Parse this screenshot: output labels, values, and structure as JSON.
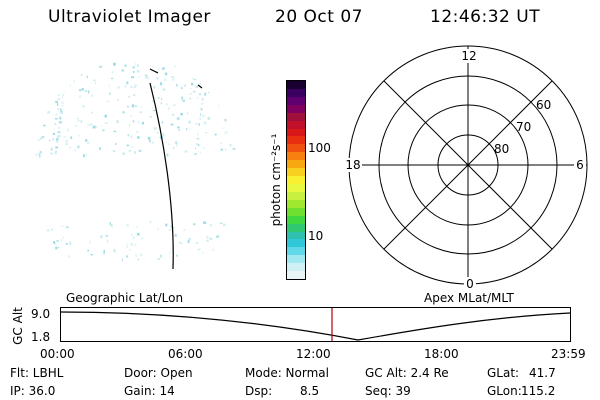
{
  "header": {
    "title": "Ultraviolet Imager",
    "date": "20 Oct 07",
    "time": "12:46:32 UT"
  },
  "colorbar": {
    "unit_label": "photon cm⁻²s⁻¹",
    "tick_labels": [
      "100",
      "10"
    ],
    "colors": [
      "#1a0030",
      "#3a0060",
      "#600070",
      "#800060",
      "#a0103a",
      "#c0102a",
      "#d81818",
      "#e83010",
      "#f05010",
      "#f88010",
      "#f8a810",
      "#f8d020",
      "#f8f030",
      "#e8f840",
      "#c8f040",
      "#a0e830",
      "#70e030",
      "#40d840",
      "#30c870",
      "#30c0b0",
      "#30c8d8",
      "#60d8e8",
      "#a0e8f0",
      "#d0f0f4",
      "#e8f4f6"
    ]
  },
  "polar_plot": {
    "label_top": "12",
    "label_bottom": "0",
    "label_left": "18",
    "label_right": "6",
    "ring_labels": [
      "60",
      "70",
      "80"
    ]
  },
  "time_panel": {
    "y_axis_label": "GC Alt",
    "y_ticks": [
      "9.0",
      "1.8"
    ],
    "left_caption": "Geographic Lat/Lon",
    "right_caption": "Apex MLat/MLT",
    "x_ticks": [
      "00:00",
      "06:00",
      "12:00",
      "18:00",
      "23:59"
    ],
    "marker_color": "#b00000"
  },
  "footer": {
    "flt": "Flt: LBHL",
    "ip": "IP: 36.0",
    "door": "Door: Open",
    "gain": "Gain: 14",
    "mode": "Mode: Normal",
    "dsp_label": "Dsp:",
    "dsp_value": "8.5",
    "gc_alt": "GC Alt: 2.4 Re",
    "seq": "Seq: 39",
    "glat_label": "GLat:",
    "glat_value": "41.7",
    "glon_label": "GLon:",
    "glon_value": "115.2"
  }
}
